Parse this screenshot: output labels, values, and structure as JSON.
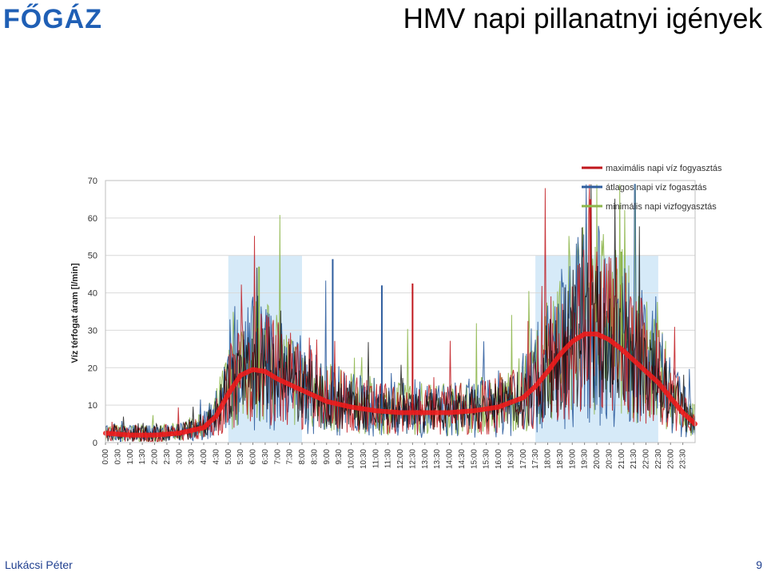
{
  "header": {
    "logo_text": "FŐGÁZ",
    "title": "HMV napi pillanatnyi igények"
  },
  "footer": {
    "author": "Lukácsi Péter",
    "page": "9"
  },
  "colors": {
    "max": "#c0161c",
    "avg": "#2e5d9e",
    "min": "#8db64b",
    "noise": "#000000",
    "trend": "#ee1c1c",
    "band": "#cfe6f7",
    "grid": "#d9d9d9",
    "logo": "#1f5fb5"
  },
  "chart_data": {
    "type": "line",
    "ylabel": "Víz térfogat áram [l/min]",
    "xlabel": "",
    "ylim": [
      0,
      70
    ],
    "yticks": [
      0,
      10,
      20,
      30,
      40,
      50,
      60,
      70
    ],
    "xticks": [
      "0:00",
      "0:30",
      "1:00",
      "1:30",
      "2:00",
      "2:30",
      "3:00",
      "3:30",
      "4:00",
      "4:30",
      "5:00",
      "5:30",
      "6:00",
      "6:30",
      "7:00",
      "7:30",
      "8:00",
      "8:30",
      "9:00",
      "9:30",
      "10:00",
      "10:30",
      "11:00",
      "11:30",
      "12:00",
      "12:30",
      "13:00",
      "13:30",
      "14:00",
      "14:30",
      "15:00",
      "15:30",
      "16:00",
      "16:30",
      "17:00",
      "17:30",
      "18:00",
      "18:30",
      "19:00",
      "19:30",
      "20:00",
      "20:30",
      "21:00",
      "21:30",
      "22:00",
      "22:30",
      "23:00",
      "23:30"
    ],
    "legend_position": "top-right",
    "series": [
      {
        "name": "maximális napi víz fogyasztás",
        "color_key": "max"
      },
      {
        "name": "átlagos napi víz fogasztás",
        "color_key": "avg"
      },
      {
        "name": "minimális napi vizfogyasztás",
        "color_key": "min"
      }
    ],
    "highlight_bands": [
      {
        "from": "5:00",
        "to": "8:00",
        "ymax": 50
      },
      {
        "from": "17:30",
        "to": "22:30",
        "ymax": 50
      }
    ],
    "trend": {
      "hours": [
        0,
        1,
        2,
        3,
        4,
        4.5,
        5,
        5.5,
        6,
        6.5,
        7,
        7.5,
        8,
        9,
        10,
        11,
        12,
        13,
        14,
        15,
        16,
        17,
        17.5,
        18,
        18.5,
        19,
        19.5,
        20,
        20.5,
        21,
        21.5,
        22,
        22.5,
        23,
        23.5,
        24
      ],
      "values": [
        2.5,
        2,
        2,
        2.5,
        4,
        7,
        13,
        18,
        19.5,
        19,
        17,
        15.5,
        14,
        11,
        9.5,
        8.5,
        8,
        8,
        8,
        8.5,
        9.5,
        12,
        15,
        19,
        23.5,
        27,
        29,
        29,
        27.5,
        25,
        22,
        19,
        16,
        12,
        8,
        5
      ]
    },
    "peaks": [
      {
        "time": "19:45",
        "value": 65,
        "series": "max"
      },
      {
        "time": "21:00",
        "value": 51,
        "series": "min"
      },
      {
        "time": "9:15",
        "value": 49,
        "series": "avg"
      },
      {
        "time": "6:15",
        "value": 47,
        "series": "min"
      },
      {
        "time": "12:30",
        "value": 42.5,
        "series": "max"
      },
      {
        "time": "11:15",
        "value": 42,
        "series": "avg"
      }
    ]
  }
}
